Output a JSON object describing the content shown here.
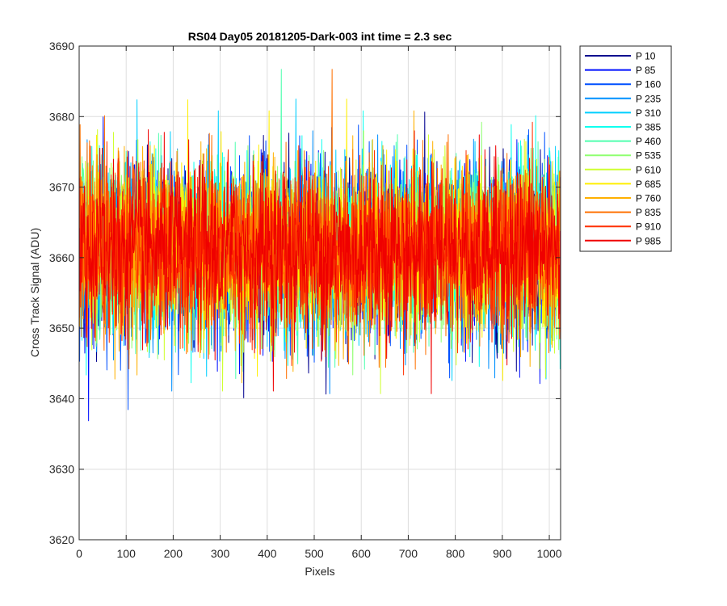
{
  "chart_data": {
    "type": "line",
    "title": "RS04 Day05 20181205-Dark-003 int time = 2.3 sec",
    "xlabel": "Pixels",
    "ylabel": "Cross Track Signal (ADU)",
    "xlim": [
      0,
      1024
    ],
    "ylim": [
      3620,
      3690
    ],
    "xticks": [
      0,
      100,
      200,
      300,
      400,
      500,
      600,
      700,
      800,
      900,
      1000
    ],
    "yticks": [
      3620,
      3630,
      3640,
      3650,
      3660,
      3670,
      3680,
      3690
    ],
    "grid": true,
    "legend_position": "outside-top-right",
    "series": [
      {
        "name": "P 10",
        "color": "#00008F",
        "mean": 3661,
        "spread": 6
      },
      {
        "name": "P 85",
        "color": "#0010FF",
        "mean": 3661,
        "spread": 6
      },
      {
        "name": "P 160",
        "color": "#0050FF",
        "mean": 3661,
        "spread": 6
      },
      {
        "name": "P 235",
        "color": "#0090FF",
        "mean": 3661,
        "spread": 6
      },
      {
        "name": "P 310",
        "color": "#00CFFF",
        "mean": 3661,
        "spread": 6
      },
      {
        "name": "P 385",
        "color": "#10FFEF",
        "mean": 3661,
        "spread": 6
      },
      {
        "name": "P 460",
        "color": "#50FFAF",
        "mean": 3661,
        "spread": 6
      },
      {
        "name": "P 535",
        "color": "#8FFF70",
        "mean": 3661,
        "spread": 6
      },
      {
        "name": "P 610",
        "color": "#CFFF30",
        "mean": 3661,
        "spread": 6
      },
      {
        "name": "P 685",
        "color": "#FFEF00",
        "mean": 3661,
        "spread": 6
      },
      {
        "name": "P 760",
        "color": "#FFB000",
        "mean": 3661,
        "spread": 6
      },
      {
        "name": "P 835",
        "color": "#FF7000",
        "mean": 3661,
        "spread": 6
      },
      {
        "name": "P 910",
        "color": "#FF3000",
        "mean": 3661,
        "spread": 6
      },
      {
        "name": "P 985",
        "color": "#EF0000",
        "mean": 3661,
        "spread": 6
      }
    ]
  }
}
